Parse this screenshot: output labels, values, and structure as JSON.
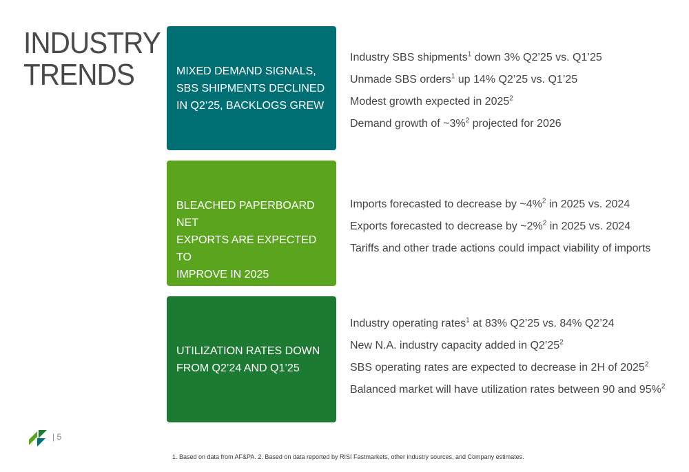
{
  "title": {
    "line1": "INDUSTRY",
    "line2": "TRENDS"
  },
  "sections": [
    {
      "box_lines": [
        "MIXED DEMAND SIGNALS,",
        "SBS SHIPMENTS DECLINED",
        "IN Q2’25, BACKLOGS GREW"
      ],
      "bullets": [
        {
          "pre": "Industry SBS shipments",
          "sup": "1",
          "post": " down 3% Q2’25 vs. Q1’25"
        },
        {
          "pre": "Unmade SBS orders",
          "sup": "1",
          "post": " up 14% Q2’25 vs. Q1’25"
        },
        {
          "pre": "Modest growth expected in 2025",
          "sup": "2",
          "post": ""
        },
        {
          "pre": "Demand growth of ~3%",
          "sup": "2",
          "post": " projected for 2026"
        }
      ]
    },
    {
      "box_lines": [
        "BLEACHED PAPERBOARD NET",
        "EXPORTS ARE EXPECTED TO",
        "IMPROVE IN 2025"
      ],
      "bullets": [
        {
          "pre": "Imports forecasted to decrease by ~4%",
          "sup": "2",
          "post": " in 2025 vs. 2024"
        },
        {
          "pre": "Exports forecasted to decrease by ~2%",
          "sup": "2",
          "post": " in 2025 vs. 2024"
        },
        {
          "pre": "Tariffs and other trade actions could impact viability of imports",
          "sup": "",
          "post": ""
        }
      ]
    },
    {
      "box_lines": [
        "UTILIZATION RATES DOWN",
        "FROM Q2’24 AND Q1’25"
      ],
      "bullets": [
        {
          "pre": "Industry operating rates",
          "sup": "1",
          "post": " at 83% Q2’25 vs. 84% Q2’24"
        },
        {
          "pre": "New N.A. industry capacity added in Q2’25",
          "sup": "2",
          "post": ""
        },
        {
          "pre": "SBS operating rates are expected to decrease in 2H of 2025",
          "sup": "2",
          "post": ""
        },
        {
          "pre": "Balanced market will have utilization rates between 90 and 95%",
          "sup": "2",
          "post": ""
        }
      ]
    }
  ],
  "page_number": "| 5",
  "footnote": "1. Based on data from AF&PA. 2. Based on data reported by RISI Fastmarkets, other industry sources, and Company estimates.",
  "colors": {
    "teal": "#006f73",
    "lime": "#5aa51d",
    "green": "#1d7a33"
  },
  "logo_icon": "company-logo-icon"
}
